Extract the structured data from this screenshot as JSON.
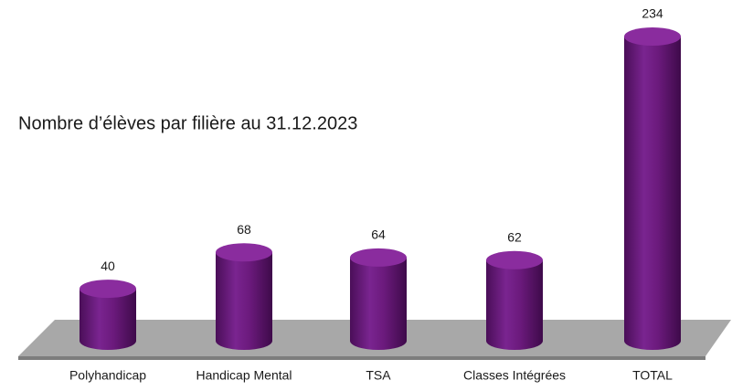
{
  "chart_data": {
    "type": "bar",
    "title": "Nombre d’élèves par filière au 31.12.2023",
    "categories": [
      "Polyhandicap",
      "Handicap Mental",
      "TSA",
      "Classes Intégrées",
      "TOTAL"
    ],
    "values": [
      40,
      68,
      64,
      62,
      234
    ],
    "color": "#6b1a7c"
  }
}
